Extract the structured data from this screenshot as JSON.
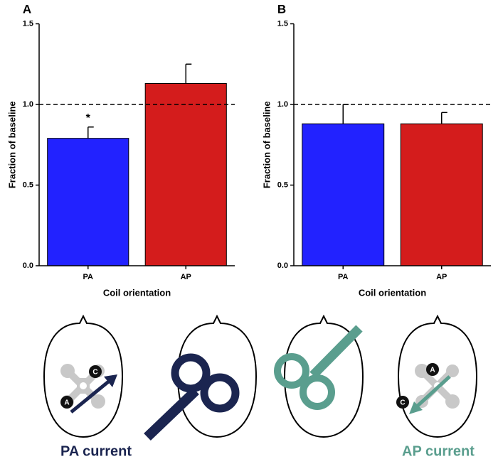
{
  "chart_data": [
    {
      "type": "bar",
      "panel_label": "A",
      "ylabel": "Fraction of baseline",
      "xlabel": "Coil orientation",
      "categories": [
        "PA",
        "AP"
      ],
      "values": [
        0.79,
        1.13
      ],
      "errors": [
        0.07,
        0.12
      ],
      "colors": [
        "#2222ff",
        "#d41c1c"
      ],
      "value_annotations": [
        "*",
        null
      ],
      "reference_line": 1.0,
      "ylim": [
        0,
        1.5
      ],
      "yticks": [
        {
          "value": 0,
          "label": "0.0"
        },
        0.5,
        {
          "value": 1,
          "label": "1.0"
        },
        1.5
      ]
    },
    {
      "type": "bar",
      "panel_label": "B",
      "ylabel": "Fraction of baseline",
      "xlabel": "Coil orientation",
      "categories": [
        "PA",
        "AP"
      ],
      "values": [
        0.88,
        0.88
      ],
      "errors": [
        0.12,
        0.07
      ],
      "colors": [
        "#2222ff",
        "#d41c1c"
      ],
      "value_annotations": [
        null,
        null
      ],
      "reference_line": 1.0,
      "ylim": [
        0,
        1.5
      ],
      "yticks": [
        {
          "value": 0,
          "label": "0.0"
        },
        0.5,
        {
          "value": 1,
          "label": "1.0"
        },
        1.5
      ]
    }
  ],
  "diagram": {
    "pa_label": "PA current",
    "ap_label": "AP current",
    "left_head_markers": [
      "C",
      "A"
    ],
    "right_head_markers": [
      "A",
      "C"
    ]
  }
}
